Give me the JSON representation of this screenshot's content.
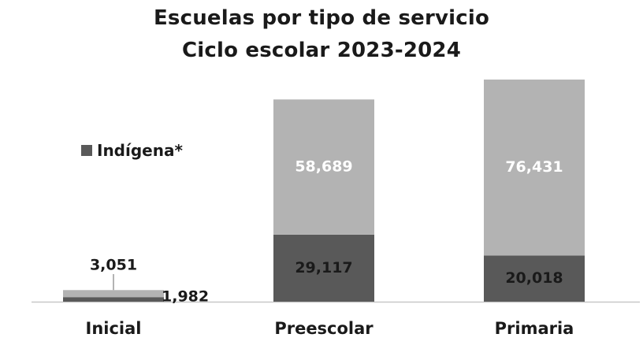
{
  "chart_data": {
    "type": "bar",
    "stacked": true,
    "title": "Escuelas por tipo de servicio",
    "subtitle": "Ciclo escolar 2023-2024",
    "categories": [
      "Inicial",
      "Preescolar",
      "Primaria"
    ],
    "series": [
      {
        "name": "Indígena*",
        "values": [
          1982,
          29117,
          20018
        ],
        "color": "#595959"
      },
      {
        "values": [
          3051,
          58689,
          76431
        ],
        "color": "#b3b3b3"
      }
    ],
    "data_labels": {
      "Indígena*": [
        "1,982",
        "29,117",
        "20,018"
      ],
      "other": [
        "3,051",
        "58,689",
        "76,431"
      ]
    },
    "ylim": [
      0,
      96449
    ],
    "legend": "left-middle",
    "grid": false
  }
}
